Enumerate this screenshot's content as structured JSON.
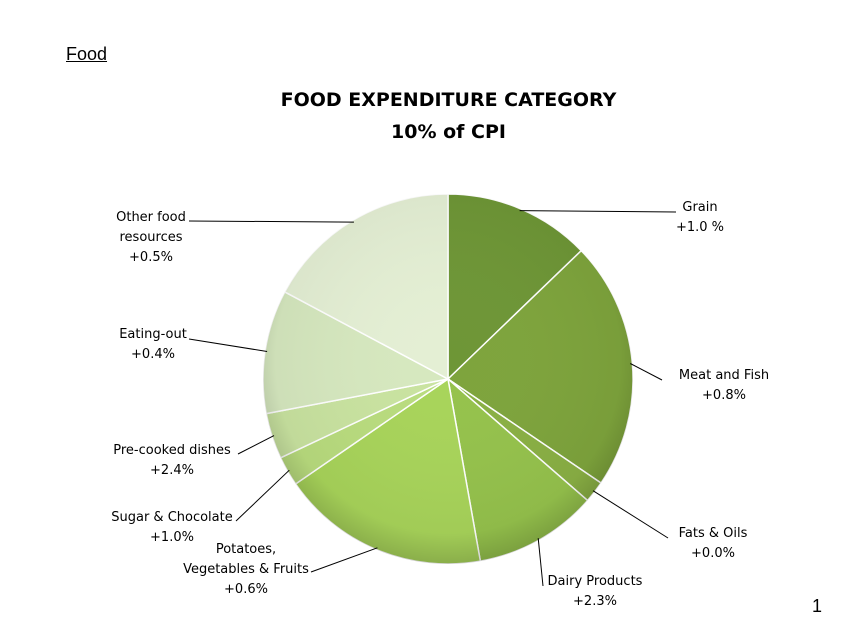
{
  "section": "Food",
  "page_number": "1",
  "chart_data": {
    "type": "pie",
    "title": "FOOD EXPENDITURE CATEGORY",
    "subtitle": "10% of CPI",
    "slices": [
      {
        "label": "Grain",
        "change": "+1.0 %",
        "share": 12.8,
        "color": "#6e9636"
      },
      {
        "label": "Meat and Fish",
        "change": "+0.8%",
        "share": 21.7,
        "color": "#7ea43c"
      },
      {
        "label": "Fats & Oils",
        "change": "+0.0%",
        "share": 1.9,
        "color": "#8ab044"
      },
      {
        "label": "Dairy Products",
        "change": "+2.3%",
        "share": 10.8,
        "color": "#95c24c"
      },
      {
        "label": "Potatoes, Vegetables & Fruits",
        "change": "+0.6%",
        "share": 18.2,
        "color": "#a8d45a"
      },
      {
        "label": "Sugar & Chocolate",
        "change": "+1.0%",
        "share": 2.6,
        "color": "#b9dc7e"
      },
      {
        "label": "Pre-cooked dishes",
        "change": "+2.4%",
        "share": 4.0,
        "color": "#c9e3a0"
      },
      {
        "label": "Eating-out",
        "change": "+0.4%",
        "share": 10.8,
        "color": "#d6e8bf"
      },
      {
        "label": "Other food resources",
        "change": "+0.5%",
        "share": 17.2,
        "color": "#e4efd4"
      }
    ]
  }
}
